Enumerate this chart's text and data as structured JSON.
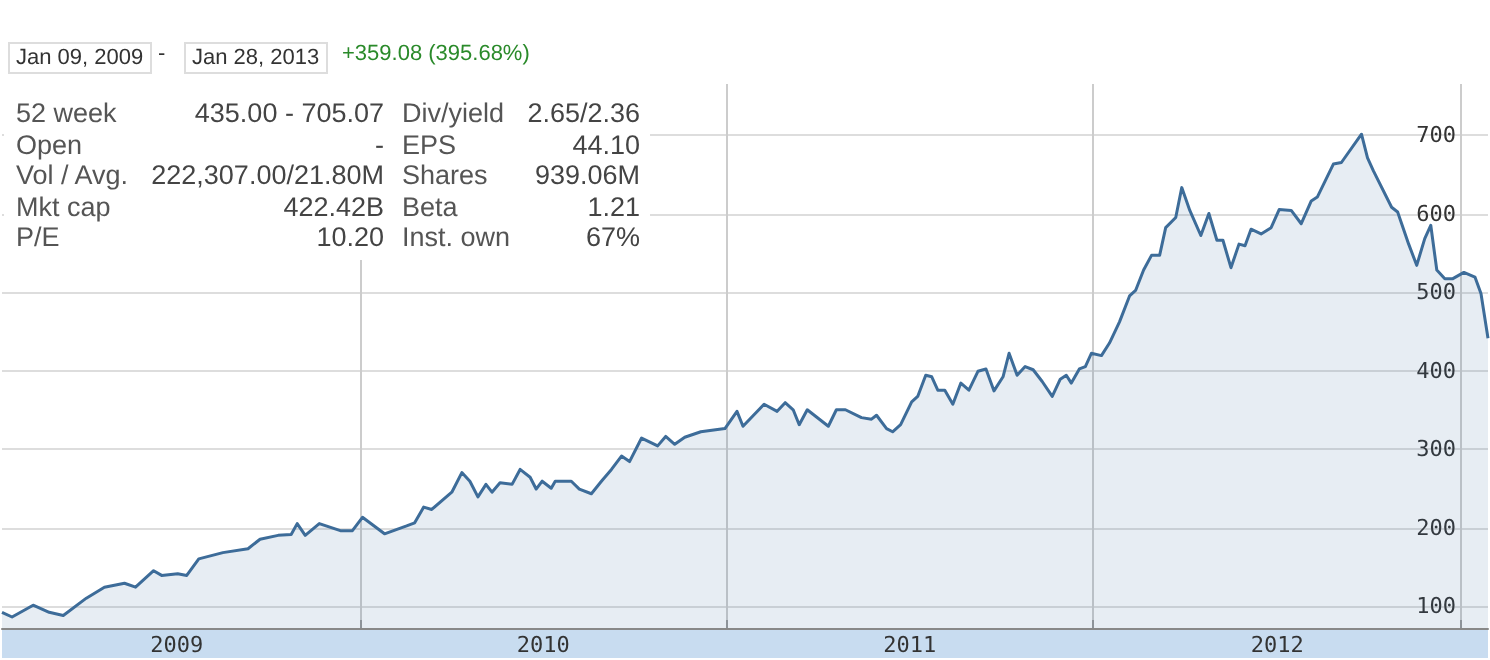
{
  "chart_data": {
    "type": "area",
    "annotations": [
      "Jan 09, 2009",
      "-",
      "Jan 28, 2013",
      "+359.08 (395.68%)",
      "52 week",
      "435.00 - 705.07",
      "Open",
      "-",
      "Vol / Avg.",
      "222,307.00/21.80M",
      "Mkt cap",
      "422.42B",
      "P/E",
      "10.20",
      "Div/yield",
      "2.65/2.36",
      "EPS",
      "44.10",
      "Shares",
      "939.06M",
      "Beta",
      "1.21",
      "Inst. own",
      "67%"
    ],
    "x": [
      "2009-01-09",
      "2009-01-19",
      "2009-02-09",
      "2009-02-25",
      "2009-03-11",
      "2009-04-03",
      "2009-04-21",
      "2009-05-11",
      "2009-05-22",
      "2009-06-09",
      "2009-06-17",
      "2009-07-03",
      "2009-07-12",
      "2009-07-24",
      "2009-08-17",
      "2009-09-11",
      "2009-09-23",
      "2009-10-11",
      "2009-10-24",
      "2009-10-30",
      "2009-11-07",
      "2009-11-21",
      "2009-12-12",
      "2009-12-24",
      "2010-01-03",
      "2010-01-25",
      "2010-02-16",
      "2010-02-24",
      "2010-03-05",
      "2010-03-13",
      "2010-04-02",
      "2010-04-12",
      "2010-04-20",
      "2010-04-28",
      "2010-05-06",
      "2010-05-12",
      "2010-05-20",
      "2010-06-01",
      "2010-06-09",
      "2010-06-19",
      "2010-06-25",
      "2010-07-01",
      "2010-07-10",
      "2010-07-14",
      "2010-07-30",
      "2010-08-07",
      "2010-08-19",
      "2010-08-29",
      "2010-09-08",
      "2010-09-18",
      "2010-09-26",
      "2010-10-08",
      "2010-10-24",
      "2010-11-01",
      "2010-11-10",
      "2010-11-20",
      "2010-12-06",
      "2010-12-30",
      "2011-01-11",
      "2011-01-17",
      "2011-02-07",
      "2011-02-20",
      "2011-02-28",
      "2011-03-08",
      "2011-03-14",
      "2011-03-22",
      "2011-04-12",
      "2011-04-20",
      "2011-04-29",
      "2011-05-15",
      "2011-05-25",
      "2011-05-30",
      "2011-06-09",
      "2011-06-15",
      "2011-06-23",
      "2011-07-04",
      "2011-07-10",
      "2011-07-18",
      "2011-07-24",
      "2011-07-30",
      "2011-08-06",
      "2011-08-14",
      "2011-08-22",
      "2011-08-30",
      "2011-09-08",
      "2011-09-16",
      "2011-09-24",
      "2011-10-03",
      "2011-10-09",
      "2011-10-17",
      "2011-10-25",
      "2011-11-02",
      "2011-11-11",
      "2011-11-21",
      "2011-11-29",
      "2011-12-05",
      "2011-12-10",
      "2011-12-18",
      "2011-12-24",
      "2011-12-30",
      "2012-01-09",
      "2012-01-17",
      "2012-01-27",
      "2012-02-06",
      "2012-02-12",
      "2012-02-20",
      "2012-02-28",
      "2012-03-07",
      "2012-03-13",
      "2012-03-23",
      "2012-03-29",
      "2012-04-06",
      "2012-04-17",
      "2012-04-25",
      "2012-05-03",
      "2012-05-09",
      "2012-05-17",
      "2012-05-25",
      "2012-05-31",
      "2012-06-06",
      "2012-06-16",
      "2012-06-26",
      "2012-07-04",
      "2012-07-16",
      "2012-07-26",
      "2012-08-05",
      "2012-08-11",
      "2012-08-27",
      "2012-09-04",
      "2012-09-24",
      "2012-09-30",
      "2012-10-06",
      "2012-10-24",
      "2012-10-30",
      "2012-11-10",
      "2012-11-18",
      "2012-11-26",
      "2012-12-02",
      "2012-12-08",
      "2012-12-16",
      "2012-12-24",
      "2013-01-04",
      "2013-01-15",
      "2013-01-21",
      "2013-01-28"
    ],
    "series": [
      {
        "color": "#3d6c99",
        "values": [
          92,
          86,
          101,
          92,
          88,
          110,
          124,
          129,
          124,
          145,
          139,
          141,
          139,
          160,
          168,
          173,
          185,
          190,
          191,
          205,
          190,
          205,
          196,
          196,
          213,
          192,
          202,
          206,
          226,
          223,
          245,
          270,
          259,
          239,
          255,
          245,
          257,
          255,
          274,
          264,
          249,
          259,
          250,
          259,
          259,
          249,
          243,
          259,
          274,
          291,
          284,
          314,
          304,
          316,
          306,
          315,
          322,
          326,
          348,
          329,
          357,
          348,
          359,
          350,
          331,
          350,
          329,
          350,
          350,
          340,
          338,
          343,
          326,
          322,
          331,
          360,
          367,
          394,
          392,
          375,
          375,
          357,
          384,
          375,
          399,
          402,
          374,
          392,
          422,
          394,
          405,
          401,
          386,
          367,
          389,
          394,
          384,
          402,
          405,
          422,
          419,
          435,
          462,
          495,
          502,
          528,
          547,
          547,
          582,
          595,
          633,
          604,
          572,
          600,
          566,
          566,
          531,
          561,
          559,
          580,
          574,
          582,
          605,
          604,
          587,
          616,
          621,
          663,
          665,
          701,
          671,
          654,
          608,
          602,
          561,
          534,
          568,
          585,
          528,
          517,
          517,
          525,
          519,
          498,
          441
        ]
      }
    ],
    "xlim": [
      "2009-01-09",
      "2013-01-28"
    ],
    "xticks": [
      {
        "value": "2009-07-02",
        "label": "2009"
      },
      {
        "value": "2010-01-01",
        "label": null
      },
      {
        "value": "2010-07-02",
        "label": "2010"
      },
      {
        "value": "2011-01-01",
        "label": null
      },
      {
        "value": "2011-07-02",
        "label": "2011"
      },
      {
        "value": "2012-01-01",
        "label": null
      },
      {
        "value": "2012-07-02",
        "label": "2012"
      },
      {
        "value": "2013-01-01",
        "label": null
      }
    ],
    "ylim": [
      72,
      765
    ],
    "yticks": [
      100,
      200,
      300,
      400,
      500,
      600,
      700
    ],
    "grid": true,
    "marker": "none",
    "line_style": "solid"
  }
}
